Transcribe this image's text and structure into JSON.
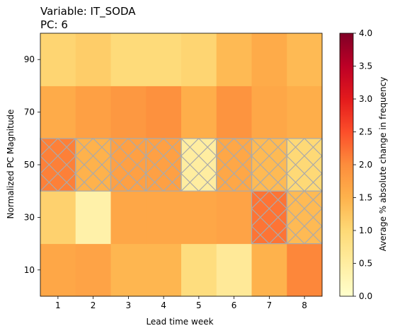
{
  "chart_data": {
    "type": "heatmap",
    "title_line1": "Variable: IT_SODA",
    "title_line2": "PC: 6",
    "xlabel": "Lead time week",
    "ylabel": "Normalized PC Magnitude",
    "x_categories": [
      "1",
      "2",
      "3",
      "4",
      "5",
      "6",
      "7",
      "8"
    ],
    "y_categories": [
      "10",
      "30",
      "50",
      "70",
      "90"
    ],
    "values": [
      [
        1.65,
        1.7,
        1.45,
        1.45,
        0.9,
        0.6,
        1.5,
        2.05
      ],
      [
        1.1,
        0.4,
        1.65,
        1.65,
        1.65,
        1.7,
        2.2,
        1.4
      ],
      [
        2.1,
        1.5,
        1.75,
        1.75,
        0.5,
        1.65,
        1.4,
        1.0
      ],
      [
        1.6,
        1.75,
        1.85,
        1.95,
        1.55,
        1.9,
        1.65,
        1.55
      ],
      [
        1.05,
        1.15,
        0.95,
        0.95,
        1.05,
        1.4,
        1.6,
        1.4
      ]
    ],
    "hatched": [
      [
        false,
        false,
        false,
        false,
        false,
        false,
        false,
        false
      ],
      [
        false,
        false,
        false,
        false,
        false,
        false,
        true,
        true
      ],
      [
        true,
        true,
        true,
        true,
        true,
        true,
        true,
        true
      ],
      [
        false,
        false,
        false,
        false,
        false,
        false,
        false,
        false
      ],
      [
        false,
        false,
        false,
        false,
        false,
        false,
        false,
        false
      ]
    ],
    "colorbar": {
      "label": "Average % absolute change in frequency",
      "range": [
        0,
        4.0
      ],
      "ticks": [
        "0.0",
        "0.5",
        "1.0",
        "1.5",
        "2.0",
        "2.5",
        "3.0",
        "3.5",
        "4.0"
      ],
      "colormap": "YlOrRd"
    },
    "hatch_color": "#aaaaaa"
  }
}
